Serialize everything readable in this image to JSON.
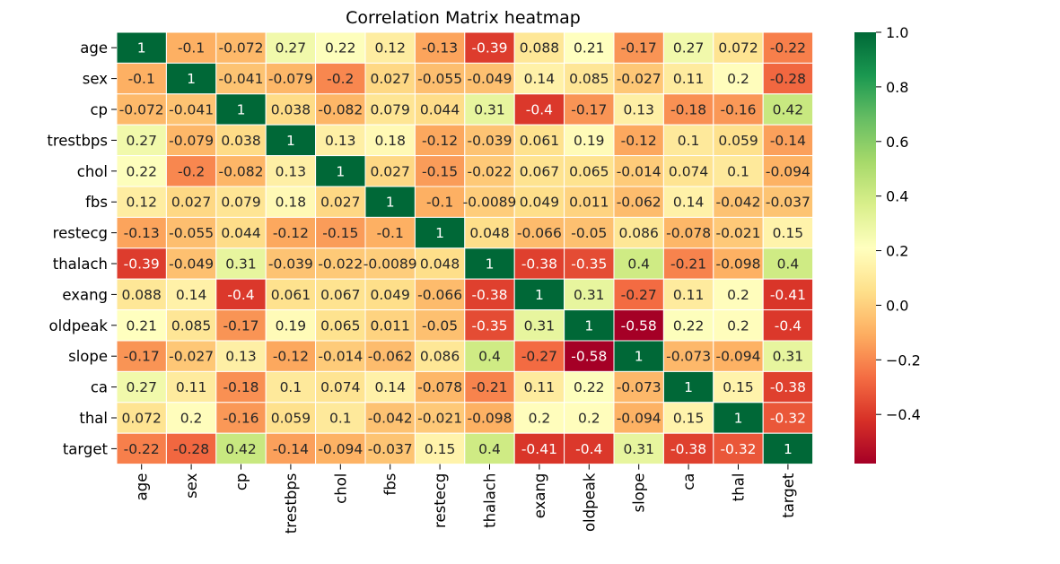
{
  "chart_data": {
    "type": "heatmap",
    "title": "Correlation Matrix heatmap",
    "labels": [
      "age",
      "sex",
      "cp",
      "trestbps",
      "chol",
      "fbs",
      "restecg",
      "thalach",
      "exang",
      "oldpeak",
      "slope",
      "ca",
      "thal",
      "target"
    ],
    "annotations": [
      [
        "1",
        "-0.1",
        "-0.072",
        "0.27",
        "0.22",
        "0.12",
        "-0.13",
        "-0.39",
        "0.088",
        "0.21",
        "-0.17",
        "0.27",
        "0.072",
        "-0.22"
      ],
      [
        "-0.1",
        "1",
        "-0.041",
        "-0.079",
        "-0.2",
        "0.027",
        "-0.055",
        "-0.049",
        "0.14",
        "0.085",
        "-0.027",
        "0.11",
        "0.2",
        "-0.28"
      ],
      [
        "-0.072",
        "-0.041",
        "1",
        "0.038",
        "-0.082",
        "0.079",
        "0.044",
        "0.31",
        "-0.4",
        "-0.17",
        "0.13",
        "-0.18",
        "-0.16",
        "0.42"
      ],
      [
        "0.27",
        "-0.079",
        "0.038",
        "1",
        "0.13",
        "0.18",
        "-0.12",
        "-0.039",
        "0.061",
        "0.19",
        "-0.12",
        "0.1",
        "0.059",
        "-0.14"
      ],
      [
        "0.22",
        "-0.2",
        "-0.082",
        "0.13",
        "1",
        "0.027",
        "-0.15",
        "-0.022",
        "0.067",
        "0.065",
        "-0.014",
        "0.074",
        "0.1",
        "-0.094"
      ],
      [
        "0.12",
        "0.027",
        "0.079",
        "0.18",
        "0.027",
        "1",
        "-0.1",
        "-0.0089",
        "0.049",
        "0.011",
        "-0.062",
        "0.14",
        "-0.042",
        "-0.037"
      ],
      [
        "-0.13",
        "-0.055",
        "0.044",
        "-0.12",
        "-0.15",
        "-0.1",
        "1",
        "0.048",
        "-0.066",
        "-0.05",
        "0.086",
        "-0.078",
        "-0.021",
        "0.15"
      ],
      [
        "-0.39",
        "-0.049",
        "0.31",
        "-0.039",
        "-0.022",
        "-0.0089",
        "0.048",
        "1",
        "-0.38",
        "-0.35",
        "0.4",
        "-0.21",
        "-0.098",
        "0.4"
      ],
      [
        "0.088",
        "0.14",
        "-0.4",
        "0.061",
        "0.067",
        "0.049",
        "-0.066",
        "-0.38",
        "1",
        "0.31",
        "-0.27",
        "0.11",
        "0.2",
        "-0.41"
      ],
      [
        "0.21",
        "0.085",
        "-0.17",
        "0.19",
        "0.065",
        "0.011",
        "-0.05",
        "-0.35",
        "0.31",
        "1",
        "-0.58",
        "0.22",
        "0.2",
        "-0.4"
      ],
      [
        "-0.17",
        "-0.027",
        "0.13",
        "-0.12",
        "-0.014",
        "-0.062",
        "0.086",
        "0.4",
        "-0.27",
        "-0.58",
        "1",
        "-0.073",
        "-0.094",
        "0.31"
      ],
      [
        "0.27",
        "0.11",
        "-0.18",
        "0.1",
        "0.074",
        "0.14",
        "-0.078",
        "-0.21",
        "0.11",
        "0.22",
        "-0.073",
        "1",
        "0.15",
        "-0.38"
      ],
      [
        "0.072",
        "0.2",
        "-0.16",
        "0.059",
        "0.1",
        "-0.042",
        "-0.021",
        "-0.098",
        "0.2",
        "0.2",
        "-0.094",
        "0.15",
        "1",
        "-0.32"
      ],
      [
        "-0.22",
        "-0.28",
        "0.42",
        "-0.14",
        "-0.094",
        "-0.037",
        "0.15",
        "0.4",
        "-0.41",
        "-0.4",
        "0.31",
        "-0.38",
        "-0.32",
        "1"
      ]
    ],
    "colormap": "RdYlGn",
    "vmin": -0.58,
    "vmax": 1.0,
    "colorbar_ticks": [
      "1.0",
      "0.8",
      "0.6",
      "0.4",
      "0.2",
      "0.0",
      "−0.2",
      "−0.4"
    ],
    "colorbar_tick_values": [
      1.0,
      0.8,
      0.6,
      0.4,
      0.2,
      0.0,
      -0.2,
      -0.4
    ],
    "grid": true,
    "cell_border_color": "#ffffff"
  }
}
